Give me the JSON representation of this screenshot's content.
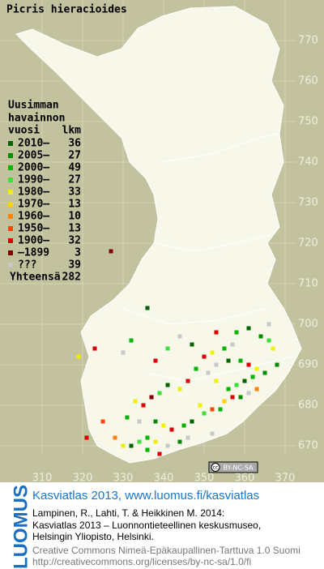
{
  "title": "Picris hieracioides",
  "legend": {
    "header": [
      "Uusimman",
      "havainnon",
      "vuosi"
    ],
    "count_header": "lkm",
    "entries": [
      {
        "label": "2010–",
        "count": 36,
        "color": "#006400"
      },
      {
        "label": "2005–",
        "count": 27,
        "color": "#008c00"
      },
      {
        "label": "2000–",
        "count": 49,
        "color": "#00b400"
      },
      {
        "label": "1990–",
        "count": 27,
        "color": "#3ce03c"
      },
      {
        "label": "1980–",
        "count": 33,
        "color": "#f0f000"
      },
      {
        "label": "1970–",
        "count": 13,
        "color": "#ffd200"
      },
      {
        "label": "1960–",
        "count": 10,
        "color": "#ff8200"
      },
      {
        "label": "1950–",
        "count": 13,
        "color": "#ff4600"
      },
      {
        "label": "1900–",
        "count": 32,
        "color": "#dc0000"
      },
      {
        "label": "–1899",
        "count": 3,
        "color": "#800000"
      },
      {
        "label": "???",
        "count": 39,
        "color": "#c8c8c8"
      }
    ],
    "total_label": "Yhteensä",
    "total": 282
  },
  "map": {
    "xlim": [
      300,
      380
    ],
    "ylim": [
      660,
      780
    ],
    "xticks": [
      310,
      320,
      330,
      340,
      350,
      360,
      370
    ],
    "yticks": [
      670,
      680,
      690,
      700,
      710,
      720,
      730,
      740,
      750,
      760,
      770
    ],
    "squares": [
      [
        336,
        704,
        0
      ],
      [
        327,
        718,
        9
      ],
      [
        353,
        698,
        8
      ],
      [
        358,
        698,
        2
      ],
      [
        361,
        699,
        0
      ],
      [
        364,
        697,
        1
      ],
      [
        366,
        696,
        3
      ],
      [
        357,
        695,
        10
      ],
      [
        355,
        694,
        2
      ],
      [
        352,
        693,
        4
      ],
      [
        350,
        692,
        8
      ],
      [
        353,
        690,
        10
      ],
      [
        356,
        691,
        0
      ],
      [
        359,
        691,
        2
      ],
      [
        361,
        690,
        8
      ],
      [
        363,
        689,
        4
      ],
      [
        365,
        688,
        1
      ],
      [
        362,
        687,
        2
      ],
      [
        360,
        686,
        0
      ],
      [
        358,
        685,
        3
      ],
      [
        356,
        684,
        2
      ],
      [
        357,
        682,
        8
      ],
      [
        355,
        681,
        5
      ],
      [
        359,
        682,
        1
      ],
      [
        361,
        683,
        10
      ],
      [
        363,
        684,
        6
      ],
      [
        353,
        686,
        4
      ],
      [
        351,
        688,
        10
      ],
      [
        348,
        689,
        2
      ],
      [
        346,
        686,
        8
      ],
      [
        344,
        684,
        4
      ],
      [
        341,
        685,
        0
      ],
      [
        339,
        683,
        3
      ],
      [
        337,
        682,
        9
      ],
      [
        335,
        680,
        8
      ],
      [
        333,
        681,
        4
      ],
      [
        331,
        677,
        2
      ],
      [
        334,
        676,
        10
      ],
      [
        338,
        676,
        1
      ],
      [
        340,
        675,
        4
      ],
      [
        342,
        674,
        8
      ],
      [
        345,
        675,
        2
      ],
      [
        347,
        676,
        0
      ],
      [
        350,
        678,
        3
      ],
      [
        352,
        679,
        7
      ],
      [
        354,
        679,
        2
      ],
      [
        349,
        680,
        4
      ],
      [
        336,
        672,
        2
      ],
      [
        334,
        671,
        3
      ],
      [
        338,
        671,
        4
      ],
      [
        341,
        670,
        10
      ],
      [
        344,
        671,
        1
      ],
      [
        346,
        672,
        10
      ],
      [
        332,
        670,
        0
      ],
      [
        330,
        670,
        4
      ],
      [
        336,
        669,
        2
      ],
      [
        339,
        668,
        8
      ],
      [
        328,
        672,
        6
      ],
      [
        325,
        676,
        7
      ],
      [
        321,
        672,
        8
      ],
      [
        319,
        692,
        4
      ],
      [
        323,
        694,
        8
      ],
      [
        330,
        693,
        10
      ],
      [
        332,
        696,
        2
      ],
      [
        338,
        691,
        8
      ],
      [
        341,
        694,
        3
      ],
      [
        344,
        697,
        10
      ],
      [
        347,
        695,
        0
      ],
      [
        367,
        694,
        4
      ],
      [
        366,
        700,
        10
      ],
      [
        368,
        690,
        1
      ],
      [
        352,
        673,
        10
      ]
    ]
  },
  "badge": "BY-NC-SA",
  "footer": {
    "logo": "LUOMUS",
    "link": "Kasviatlas 2013, www.luomus.fi/kasviatlas",
    "citation": [
      "Lampinen, R., Lahti, T. & Heikkinen M. 2014:",
      "Kasviatlas 2013 – Luonnontieteellinen keskusmuseo,",
      "Helsingin Yliopisto, Helsinki."
    ],
    "license": [
      "Creative Commons Nimeä-Epäkaupallinen-Tarttuva 1.0 Suomi",
      "http://creativecommons.org/licenses/by-nc-sa/1.0/fi"
    ]
  }
}
